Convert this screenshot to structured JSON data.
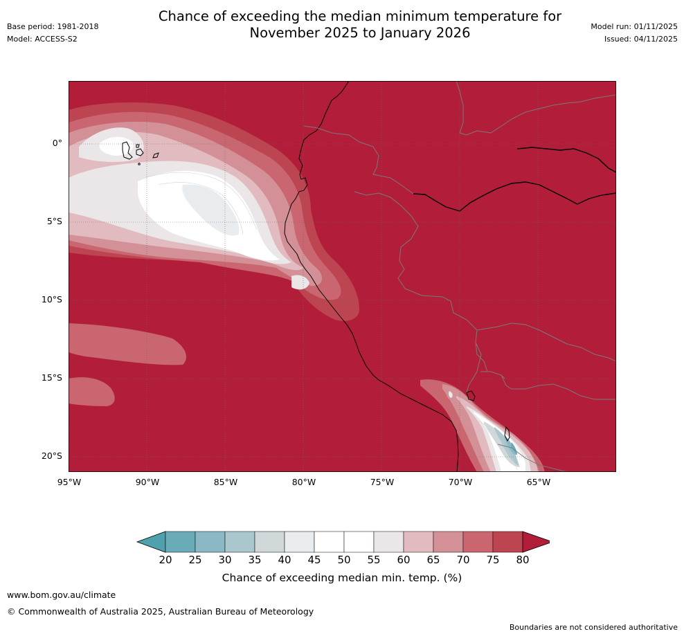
{
  "header": {
    "title_line1": "Chance of exceeding the median minimum temperature for",
    "title_line2": "November 2025 to January 2026",
    "base_period": "Base period: 1981-2018",
    "model": "Model: ACCESS-S2",
    "model_run": "Model run: 01/11/2025",
    "issued": "Issued: 04/11/2025"
  },
  "map": {
    "lat_labels": [
      "0°",
      "5°S",
      "10°S",
      "15°S",
      "20°S"
    ],
    "lon_labels": [
      "95°W",
      "90°W",
      "85°W",
      "80°W",
      "75°W",
      "70°W",
      "65°W"
    ],
    "extent": {
      "lon": [
        -95,
        -60
      ],
      "lat": [
        -21,
        4
      ]
    },
    "dominant_category": "80+"
  },
  "colorbar": {
    "label": "Chance of exceeding median min. temp. (%)",
    "ticks": [
      "20",
      "25",
      "30",
      "35",
      "40",
      "45",
      "50",
      "55",
      "60",
      "65",
      "70",
      "75",
      "80"
    ],
    "colors": [
      "#6aabb8",
      "#8ab8c4",
      "#aac7cd",
      "#d0d8da",
      "#e8ecee",
      "#ffffff",
      "#ffffff",
      "#ebe7e8",
      "#e1bbc0",
      "#d39197",
      "#c96670",
      "#bd4552",
      "#b21d39"
    ],
    "under_color": "#4fa1ae",
    "over_color": "#b21d39"
  },
  "footer": {
    "website": "www.bom.gov.au/climate",
    "copyright": "© Commonwealth of Australia 2025, Australian Bureau of Meteorology",
    "disclaimer": "Boundaries are not considered authoritative"
  }
}
